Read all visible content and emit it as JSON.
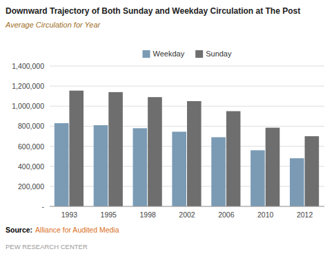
{
  "chart_data": {
    "type": "bar",
    "title": "Downward Trajectory of Both Sunday and Weekday Circulation at The Post",
    "subtitle": "Average Circulation for Year",
    "categories": [
      "1993",
      "1995",
      "1998",
      "2002",
      "2006",
      "2010",
      "2012"
    ],
    "series": [
      {
        "name": "Weekday",
        "color": "#7B9BB5",
        "values": [
          830000,
          810000,
          780000,
          745000,
          690000,
          560000,
          480000
        ]
      },
      {
        "name": "Sunday",
        "color": "#6E6E6E",
        "values": [
          1155000,
          1140000,
          1090000,
          1050000,
          950000,
          785000,
          700000
        ]
      }
    ],
    "ylim": [
      0,
      1400000
    ],
    "yticks": [
      {
        "value": 0,
        "label": "-"
      },
      {
        "value": 200000,
        "label": "200,000"
      },
      {
        "value": 400000,
        "label": "400,000"
      },
      {
        "value": 600000,
        "label": "600,000"
      },
      {
        "value": 800000,
        "label": "800,000"
      },
      {
        "value": 1000000,
        "label": "1,000,000"
      },
      {
        "value": 1200000,
        "label": "1,200,000"
      },
      {
        "value": 1400000,
        "label": "1,400,000"
      }
    ],
    "grid": true,
    "legend": "top",
    "annotations": [
      "Source:",
      "Alliance for Audited Media",
      "PEW RESEARCH CENTER"
    ]
  }
}
